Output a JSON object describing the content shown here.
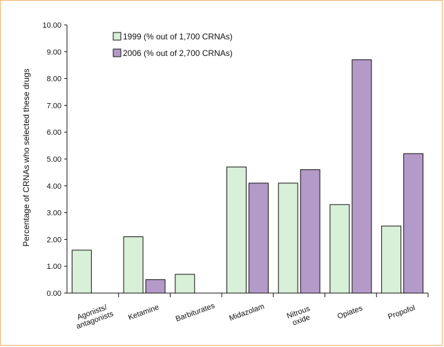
{
  "chart_data": {
    "type": "bar",
    "ylabel": "Percentage of CRNAs who selected these drugs",
    "ylim": [
      0,
      10
    ],
    "ytick_labels": [
      "0.00",
      "1.00",
      "2.00",
      "3.00",
      "4.00",
      "5.00",
      "6.00",
      "7.00",
      "8.00",
      "9.00",
      "10.00"
    ],
    "categories": [
      [
        "Agonists/",
        "antagonists"
      ],
      [
        "Ketamine"
      ],
      [
        "Barbiturates"
      ],
      [
        "Midazolam"
      ],
      [
        "Nitrous",
        "oxide"
      ],
      [
        "Opiates"
      ],
      [
        "Propofol"
      ]
    ],
    "series": [
      {
        "name": "1999 (% out of 1,700 CRNAs)",
        "values": [
          1.6,
          2.1,
          0.7,
          4.7,
          4.1,
          3.3,
          2.5
        ],
        "color": "#d8efd8"
      },
      {
        "name": "2006 (% out of 2,700 CRNAs)",
        "values": [
          0,
          0.5,
          0,
          4.1,
          4.6,
          8.7,
          5.2
        ],
        "color": "#b49ac8"
      }
    ],
    "legend_position": "top-left",
    "grid": false
  }
}
